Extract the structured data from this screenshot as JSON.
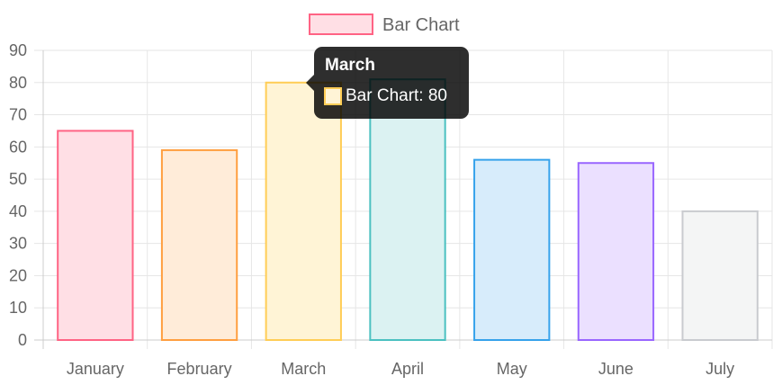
{
  "chart_data": {
    "type": "bar",
    "categories": [
      "January",
      "February",
      "March",
      "April",
      "May",
      "June",
      "July"
    ],
    "series": [
      {
        "name": "Bar Chart",
        "values": [
          65,
          59,
          80,
          81,
          56,
          55,
          40
        ]
      }
    ],
    "bar_fill_colors": [
      "#ffdfe5",
      "#ffecd9",
      "#fff4d6",
      "#dbf2f2",
      "#d7ecfb",
      "#ebe0ff",
      "#f4f5f5"
    ],
    "bar_border_colors": [
      "#ff6384",
      "#ff9f40",
      "#ffcd56",
      "#4bc0c0",
      "#36a2eb",
      "#9966ff",
      "#c9cbcf"
    ],
    "legend_fill_color": "#ffdfe5",
    "legend_border_color": "#ff6384",
    "ylim": [
      0,
      90
    ],
    "yticks": [
      0,
      10,
      20,
      30,
      40,
      50,
      60,
      70,
      80,
      90
    ],
    "grid": true,
    "legend_position": "top",
    "title": "",
    "xlabel": "",
    "ylabel": ""
  },
  "tooltip": {
    "title": "March",
    "label": "Bar Chart: 80",
    "swatch_fill": "#fff4d6",
    "swatch_border": "#ffcd56"
  }
}
